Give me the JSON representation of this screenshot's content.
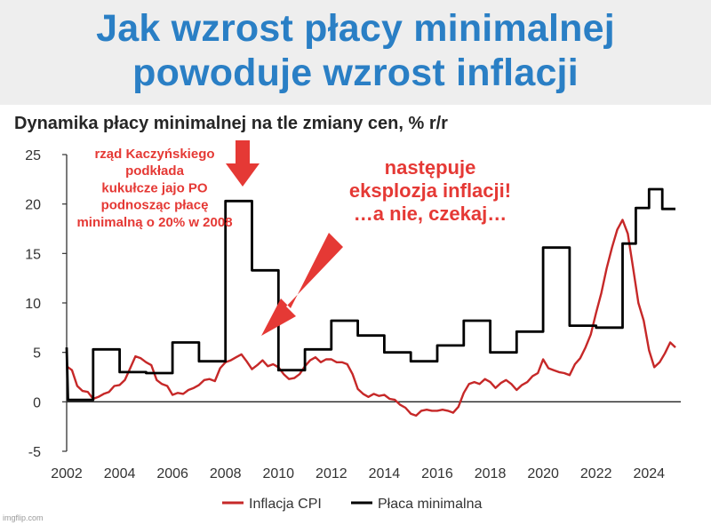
{
  "meme": {
    "title_line1": "Jak wzrost płacy minimalnej",
    "title_line2": "powoduje wzrost inflacji",
    "title_color": "#2a7fc5"
  },
  "watermark": "imgflip.com",
  "annotations": [
    {
      "lines": [
        "rząd Kaczyńskiego",
        "podkłada",
        "kukułcze jajo PO",
        "podnosząc płacę",
        "minimalną o 20% w 2008"
      ],
      "color": "#e53935"
    },
    {
      "lines": [
        "następuje",
        "eksplozja inflacji!",
        "…a nie, czekaj…"
      ],
      "color": "#e53935"
    }
  ],
  "chart_data": {
    "type": "line",
    "title": "Dynamika płacy minimalnej na tle zmiany cen, % r/r",
    "xlim": [
      2002,
      2025.2
    ],
    "ylim": [
      -5,
      25
    ],
    "x_ticks": [
      2002,
      2004,
      2006,
      2008,
      2010,
      2012,
      2014,
      2016,
      2018,
      2020,
      2022,
      2024
    ],
    "y_ticks": [
      -5,
      0,
      5,
      10,
      15,
      20,
      25
    ],
    "grid": false,
    "legend": "bottom",
    "series": [
      {
        "name": "Inflacja CPI",
        "color": "#c62828",
        "x": [
          2002.0,
          2002.2,
          2002.4,
          2002.6,
          2002.8,
          2003.0,
          2003.2,
          2003.4,
          2003.6,
          2003.8,
          2004.0,
          2004.2,
          2004.4,
          2004.6,
          2004.8,
          2005.0,
          2005.2,
          2005.4,
          2005.6,
          2005.8,
          2006.0,
          2006.2,
          2006.4,
          2006.6,
          2006.8,
          2007.0,
          2007.2,
          2007.4,
          2007.6,
          2007.8,
          2008.0,
          2008.2,
          2008.4,
          2008.6,
          2008.8,
          2009.0,
          2009.2,
          2009.4,
          2009.6,
          2009.8,
          2010.0,
          2010.2,
          2010.4,
          2010.6,
          2010.8,
          2011.0,
          2011.2,
          2011.4,
          2011.6,
          2011.8,
          2012.0,
          2012.2,
          2012.4,
          2012.6,
          2012.8,
          2013.0,
          2013.2,
          2013.4,
          2013.6,
          2013.8,
          2014.0,
          2014.2,
          2014.4,
          2014.6,
          2014.8,
          2015.0,
          2015.2,
          2015.4,
          2015.6,
          2015.8,
          2016.0,
          2016.2,
          2016.4,
          2016.6,
          2016.8,
          2017.0,
          2017.2,
          2017.4,
          2017.6,
          2017.8,
          2018.0,
          2018.2,
          2018.4,
          2018.6,
          2018.8,
          2019.0,
          2019.2,
          2019.4,
          2019.6,
          2019.8,
          2020.0,
          2020.2,
          2020.4,
          2020.6,
          2020.8,
          2021.0,
          2021.2,
          2021.4,
          2021.6,
          2021.8,
          2022.0,
          2022.2,
          2022.4,
          2022.6,
          2022.8,
          2023.0,
          2023.2,
          2023.4,
          2023.6,
          2023.8,
          2024.0,
          2024.2,
          2024.4,
          2024.6,
          2024.8,
          2025.0
        ],
        "y": [
          3.6,
          3.2,
          1.6,
          1.1,
          1.0,
          0.3,
          0.5,
          0.8,
          1.0,
          1.6,
          1.7,
          2.2,
          3.4,
          4.6,
          4.4,
          4.0,
          3.7,
          2.2,
          1.8,
          1.6,
          0.7,
          0.9,
          0.8,
          1.2,
          1.4,
          1.7,
          2.2,
          2.3,
          2.1,
          3.4,
          4.0,
          4.2,
          4.5,
          4.8,
          4.1,
          3.3,
          3.7,
          4.2,
          3.6,
          3.8,
          3.5,
          2.8,
          2.3,
          2.4,
          2.8,
          3.6,
          4.2,
          4.5,
          4.0,
          4.3,
          4.3,
          4.0,
          4.0,
          3.8,
          2.8,
          1.3,
          0.8,
          0.5,
          0.8,
          0.6,
          0.7,
          0.3,
          0.2,
          -0.3,
          -0.6,
          -1.2,
          -1.4,
          -0.9,
          -0.8,
          -0.9,
          -0.9,
          -0.8,
          -0.9,
          -1.1,
          -0.5,
          0.9,
          1.8,
          2.0,
          1.8,
          2.3,
          2.0,
          1.4,
          1.9,
          2.2,
          1.8,
          1.2,
          1.7,
          2.0,
          2.6,
          2.9,
          4.3,
          3.4,
          3.2,
          3.0,
          2.9,
          2.7,
          3.8,
          4.4,
          5.5,
          6.8,
          9.0,
          11.0,
          13.5,
          15.6,
          17.4,
          18.4,
          17.0,
          13.5,
          10.0,
          8.2,
          5.2,
          3.5,
          4.0,
          4.9,
          6.0,
          5.5
        ],
        "note": "series digitized from the rendered chart with corrections to match visible features"
      },
      {
        "name": "Płaca minimalna",
        "color": "#000000",
        "x": [
          2002.0,
          2002.05,
          2003.0,
          2003.0,
          2004.0,
          2004.0,
          2005.0,
          2005.0,
          2006.0,
          2006.0,
          2007.0,
          2007.0,
          2008.0,
          2008.0,
          2009.0,
          2009.0,
          2010.0,
          2010.0,
          2011.0,
          2011.0,
          2012.0,
          2012.0,
          2013.0,
          2013.0,
          2014.0,
          2014.0,
          2015.0,
          2015.0,
          2016.0,
          2016.0,
          2017.0,
          2017.0,
          2018.0,
          2018.0,
          2019.0,
          2019.0,
          2020.0,
          2020.0,
          2021.0,
          2021.0,
          2022.0,
          2022.0,
          2023.0,
          2023.0,
          2023.5,
          2023.5,
          2024.0,
          2024.0,
          2024.5,
          2024.5,
          2025.0
        ],
        "y": [
          5.5,
          0.2,
          0.2,
          5.3,
          5.3,
          3.0,
          3.0,
          2.9,
          2.9,
          6.0,
          6.0,
          4.1,
          4.1,
          20.3,
          20.3,
          13.3,
          13.3,
          3.2,
          3.2,
          5.3,
          5.3,
          8.2,
          8.2,
          6.7,
          6.7,
          5.0,
          5.0,
          4.1,
          4.1,
          5.7,
          5.7,
          8.2,
          8.2,
          5.0,
          5.0,
          7.1,
          7.1,
          15.6,
          15.6,
          7.7,
          7.7,
          7.5,
          7.5,
          16.0,
          16.0,
          19.6,
          19.6,
          21.5,
          21.5,
          19.5,
          19.5
        ]
      }
    ]
  }
}
